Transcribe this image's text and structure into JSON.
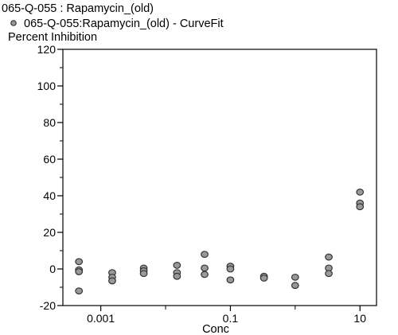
{
  "header": {
    "title": "065-Q-055  : Rapamycin_(old)",
    "legend_label": "065-Q-055:Rapamycin_(old) - CurveFit",
    "ylabel": "Percent Inhibition"
  },
  "colors": {
    "marker_fill": "#999999",
    "marker_stroke": "#333333",
    "axis": "#000000"
  },
  "chart_data": {
    "type": "scatter",
    "title": "065-Q-055  : Rapamycin_(old)",
    "xlabel": "Conc",
    "ylabel": "Percent Inhibition",
    "x_scale": "log",
    "xlim": [
      0.00026,
      18
    ],
    "ylim": [
      -20,
      120
    ],
    "x_ticks": [
      0.001,
      0.1,
      10
    ],
    "x_tick_labels": [
      "0.001",
      "0.1",
      "10"
    ],
    "y_ticks": [
      -20,
      0,
      20,
      40,
      60,
      80,
      100,
      120
    ],
    "y_tick_labels": [
      "-20",
      "0",
      "20",
      "40",
      "60",
      "80",
      "100",
      "120"
    ],
    "grid": false,
    "legend": "top-left",
    "series": [
      {
        "name": "065-Q-055:Rapamycin_(old) - CurveFit",
        "points": [
          [
            0.00046,
            4
          ],
          [
            0.00046,
            -0.5
          ],
          [
            0.00046,
            -1.5
          ],
          [
            0.00046,
            -12
          ],
          [
            0.0015,
            -2
          ],
          [
            0.0015,
            -4.5
          ],
          [
            0.0015,
            -6.5
          ],
          [
            0.0046,
            0.5
          ],
          [
            0.0046,
            -1
          ],
          [
            0.0046,
            -2.5
          ],
          [
            0.015,
            2
          ],
          [
            0.015,
            -2
          ],
          [
            0.015,
            -4
          ],
          [
            0.04,
            8
          ],
          [
            0.04,
            0.5
          ],
          [
            0.04,
            -3
          ],
          [
            0.1,
            1.5
          ],
          [
            0.1,
            0
          ],
          [
            0.1,
            -6
          ],
          [
            0.33,
            -4
          ],
          [
            0.33,
            -5
          ],
          [
            1.0,
            -4.5
          ],
          [
            1.0,
            -9
          ],
          [
            3.3,
            6.5
          ],
          [
            3.3,
            0.5
          ],
          [
            3.3,
            -2.5
          ],
          [
            10,
            42
          ],
          [
            10,
            36
          ],
          [
            10,
            34
          ]
        ]
      }
    ]
  }
}
